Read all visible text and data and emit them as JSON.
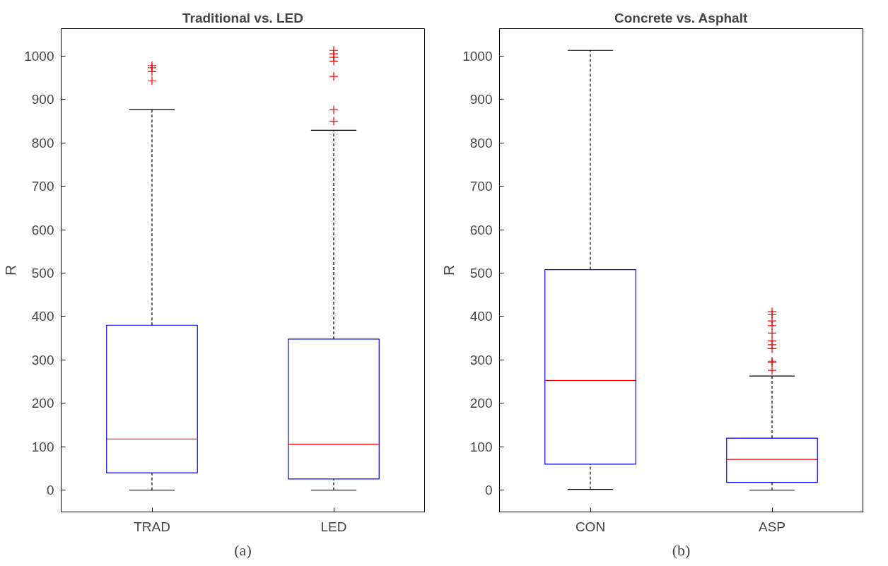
{
  "chart_data": [
    {
      "type": "box",
      "title": "Traditional vs. LED",
      "ylabel": "R",
      "categories": [
        "TRAD",
        "LED"
      ],
      "ylim": [
        -50,
        1063
      ],
      "yticks": [
        0,
        100,
        200,
        300,
        400,
        500,
        600,
        700,
        800,
        900,
        1000
      ],
      "grid": false,
      "marker": "cross",
      "annotations": [
        "(a)"
      ],
      "series": [
        {
          "color": "#0000ff",
          "boxes": [
            {
              "low": 0,
              "q1": 40,
              "median": 118,
              "q3": 380,
              "high": 877,
              "outliers": [
                943,
                964,
                973,
                978
              ]
            },
            {
              "low": 0,
              "q1": 26,
              "median": 106,
              "q3": 348,
              "high": 829,
              "outliers": [
                850,
                876,
                953,
                988,
                997,
                1005,
                1013
              ]
            }
          ]
        }
      ]
    },
    {
      "type": "box",
      "title": "Concrete vs. Asphalt",
      "ylabel": "R",
      "categories": [
        "CON",
        "ASP"
      ],
      "ylim": [
        -50,
        1063
      ],
      "yticks": [
        0,
        100,
        200,
        300,
        400,
        500,
        600,
        700,
        800,
        900,
        1000
      ],
      "grid": false,
      "marker": "cross",
      "annotations": [
        "(b)"
      ],
      "series": [
        {
          "color": "#0000ff",
          "boxes": [
            {
              "low": 2,
              "q1": 60,
              "median": 253,
              "q3": 508,
              "high": 1013
            },
            {
              "low": 0,
              "q1": 18,
              "median": 71,
              "q3": 120,
              "high": 263,
              "outliers": [
                276,
                294,
                297,
                326,
                335,
                344,
                362,
                379,
                390,
                404,
                411
              ]
            }
          ]
        }
      ]
    }
  ]
}
